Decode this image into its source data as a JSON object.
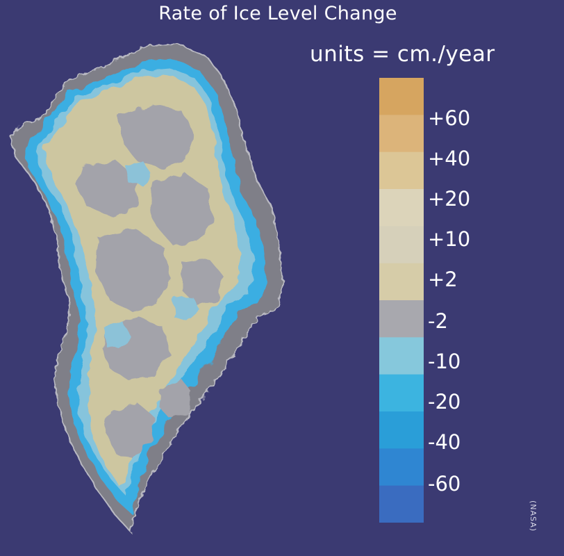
{
  "title": "Rate of Ice Level Change",
  "units_label": "units = cm./year",
  "credit": "(NASA)",
  "colors": {
    "background": "#3b3a72",
    "coast_rock": "#7d7d86",
    "ice_gray": "#a3a3aa",
    "ice_tan": "#cdc6a0"
  },
  "legend": {
    "swatches": [
      "#d6a560",
      "#dcb47a",
      "#dcc696",
      "#dcd4ba",
      "#d6d0ba",
      "#d6cca8",
      "#a8a8ae",
      "#86c8dc",
      "#3cb4e0",
      "#2a9ed8",
      "#2f86d2",
      "#3a6cc0"
    ],
    "labels": [
      "+60",
      "+40",
      "+20",
      "+10",
      "+2",
      "-2",
      "-10",
      "-20",
      "-40",
      "-60"
    ]
  }
}
